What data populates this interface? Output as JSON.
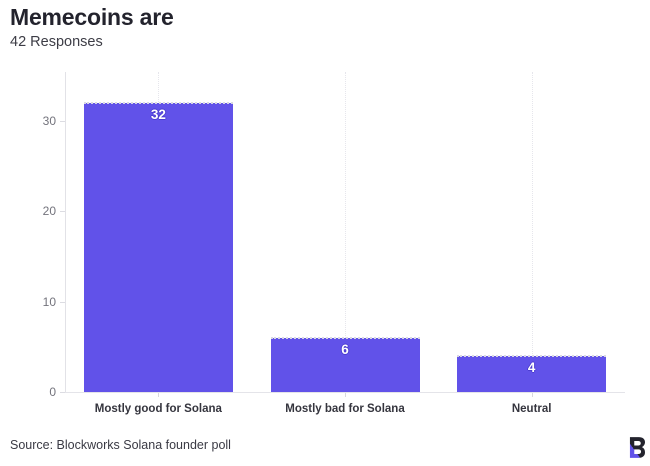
{
  "header": {
    "title": "Memecoins are",
    "subtitle": "42 Responses"
  },
  "chart_data": {
    "type": "bar",
    "categories": [
      "Mostly good for Solana",
      "Mostly bad for Solana",
      "Neutral"
    ],
    "values": [
      32,
      6,
      4
    ],
    "title": "Memecoins are",
    "subtitle": "42 Responses",
    "xlabel": "",
    "ylabel": "",
    "ylim": [
      0,
      35
    ],
    "yticks": [
      0,
      10,
      20,
      30
    ],
    "grid": "vertical dotted category gridlines, light gray baseline and y-axis",
    "legend": "none",
    "bar_color": "#6152e9",
    "value_label_color": "#ffffff"
  },
  "footer": {
    "source": "Source: Blockworks Solana founder poll",
    "logo": "blockworks-b-logo"
  },
  "colors": {
    "accent": "#6152e9",
    "title_text": "#23232d",
    "subtitle_text": "#3d3d46",
    "axis_text": "#73737c",
    "category_text": "#35353e",
    "axis_line": "#e2e2e7",
    "logo_dark": "#23232d"
  }
}
